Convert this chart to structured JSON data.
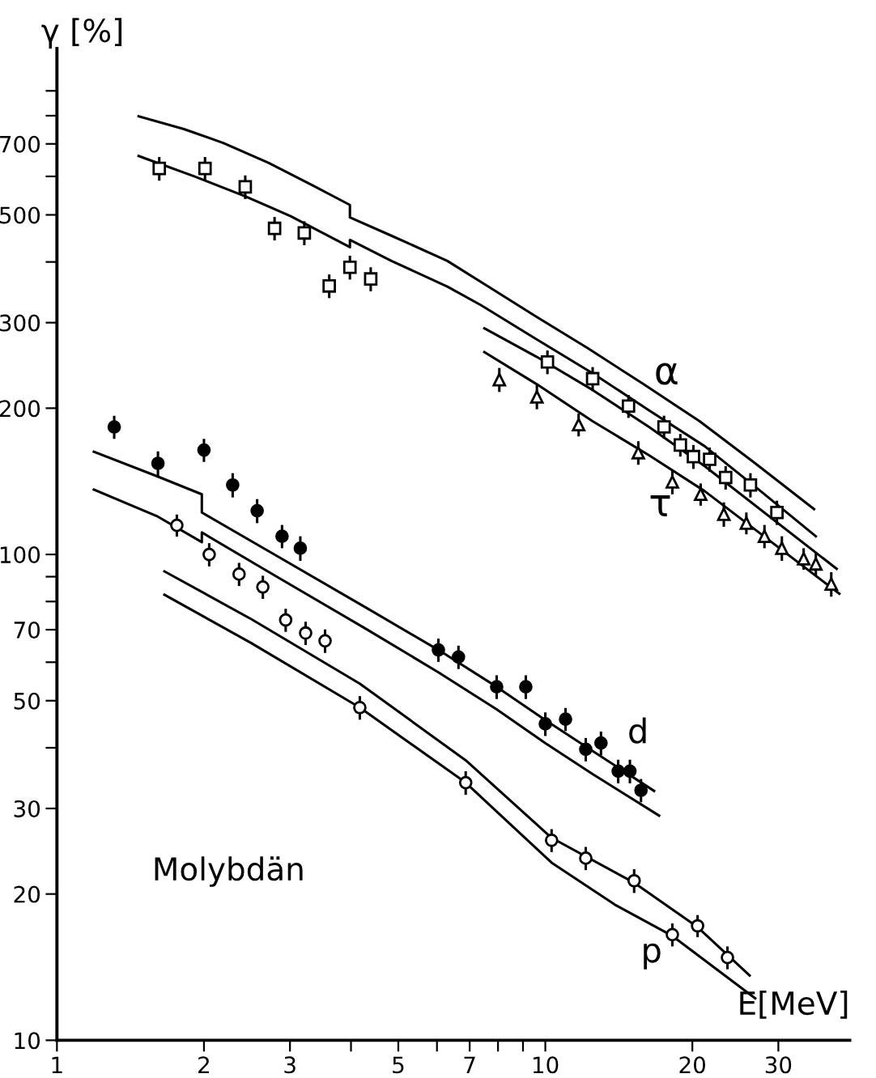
{
  "chart_data": {
    "type": "scatter",
    "xlabel": "E[MeV]",
    "ylabel": "γ [%]",
    "log": "xy",
    "grid": false,
    "legend": false,
    "xlim": [
      1,
      42
    ],
    "ylim": [
      10,
      1100
    ],
    "xticks": [
      1,
      2,
      3,
      {
        "value": 4,
        "label": null
      },
      5,
      {
        "value": 6,
        "label": null
      },
      7,
      {
        "value": 8,
        "label": null
      },
      {
        "value": 9,
        "label": null
      },
      10,
      20,
      30
    ],
    "yticks": [
      10,
      20,
      30,
      {
        "value": 40,
        "label": null
      },
      50,
      {
        "value": 60,
        "label": null
      },
      70,
      {
        "value": 80,
        "label": null
      },
      {
        "value": 90,
        "label": null
      },
      100,
      200,
      300,
      {
        "value": 400,
        "label": null
      },
      500,
      {
        "value": 600,
        "label": null
      },
      700,
      {
        "value": 800,
        "label": null
      },
      {
        "value": 900,
        "label": null
      }
    ],
    "annotations": [
      "α",
      "τ",
      "d",
      "p",
      "Molybdän"
    ],
    "series": [
      {
        "color": "#000000",
        "marker": "square",
        "x": [
          1.62,
          2.01,
          2.43,
          2.79,
          3.21,
          3.61,
          3.98,
          4.39,
          10.1,
          12.5,
          14.8,
          17.5,
          18.9,
          20.1,
          21.7,
          23.4,
          26.3,
          29.8
        ],
        "values": [
          623,
          623,
          571,
          469,
          459,
          357,
          390,
          369,
          249,
          230,
          202,
          183,
          168,
          159,
          157,
          144,
          139,
          122
        ],
        "errors": [
          35,
          35,
          32,
          26,
          26,
          20,
          22,
          21,
          14,
          13,
          11,
          10,
          9,
          9,
          9,
          8,
          8,
          7
        ]
      },
      {
        "color": "#000000",
        "marker": "triangle",
        "x": [
          8.05,
          9.61,
          11.7,
          15.5,
          18.2,
          20.8,
          23.2,
          25.8,
          28.1,
          30.5,
          33.8,
          35.8,
          38.5
        ],
        "values": [
          229,
          211,
          185,
          162,
          141,
          133,
          121,
          116,
          109,
          103,
          98,
          95.6,
          86.9
        ],
        "errors": [
          13,
          12,
          10,
          9,
          8,
          7,
          7,
          6,
          6,
          6,
          5,
          5,
          5
        ]
      },
      {
        "color": "#000000",
        "marker": "circle",
        "x": [
          1.31,
          1.61,
          2.0,
          2.29,
          2.57,
          2.89,
          3.15,
          6.04,
          6.64,
          7.95,
          9.12,
          10.0,
          11.0,
          12.1,
          13.0,
          14.1,
          14.9,
          15.7
        ],
        "values": [
          183,
          154,
          164,
          139,
          123,
          109,
          103,
          63.6,
          61.5,
          53.4,
          53.4,
          44.8,
          45.8,
          39.7,
          40.9,
          35.8,
          35.8,
          32.7
        ],
        "errors": [
          10,
          9,
          9,
          8,
          7,
          6,
          6,
          3.5,
          3.4,
          3,
          3,
          2.5,
          2.5,
          2.2,
          2.3,
          2,
          2,
          1.8
        ]
      },
      {
        "color": "#000000",
        "marker": "circle",
        "x": [
          1.76,
          2.05,
          2.36,
          2.64,
          2.94,
          3.23,
          3.54,
          4.17,
          6.87,
          10.3,
          12.1,
          15.2,
          18.2,
          20.5,
          23.6
        ],
        "values": [
          114.8,
          100,
          91.1,
          85.7,
          73.3,
          68.9,
          66.4,
          48.4,
          33.9,
          25.8,
          23.7,
          21.3,
          16.5,
          17.2,
          14.8
        ],
        "errors": [
          6,
          5.5,
          5,
          4.7,
          4,
          3.8,
          3.7,
          2.7,
          1.9,
          1.4,
          1.3,
          1.2,
          0.9,
          0.9,
          0.8
        ]
      },
      {
        "type": "line",
        "color": "#000000",
        "marker": "none",
        "x": [
          1.47,
          1.82,
          2.19,
          2.71,
          3.34,
          3.98,
          3.98,
          4.84,
          6.3,
          7.78,
          9.61,
          12.2,
          15.9,
          20.7,
          26.9,
          35.5
        ],
        "values": [
          798,
          751,
          703,
          640,
          575,
          524,
          494,
          453,
          402,
          352,
          308,
          266,
          224,
          188,
          154,
          124
        ]
      },
      {
        "type": "line",
        "color": "#000000",
        "marker": "none",
        "x": [
          1.47,
          1.92,
          2.43,
          3.01,
          3.98,
          3.98,
          4.84,
          6.3,
          7.38,
          9.61,
          12.5,
          16.3,
          21.2,
          27.6,
          35.8
        ],
        "values": [
          661,
          599,
          546,
          497,
          429,
          444,
          402,
          356,
          326,
          277,
          236,
          198,
          167,
          135,
          109
        ]
      },
      {
        "type": "line",
        "color": "#000000",
        "marker": "none",
        "x": [
          7.5,
          9.61,
          12.5,
          16.3,
          21.2,
          39.5
        ],
        "values": [
          292,
          255,
          218,
          183,
          152,
          93.4
        ]
      },
      {
        "type": "line",
        "color": "#000000",
        "marker": "none",
        "x": [
          7.5,
          9.61,
          12.5,
          16.3,
          21.2,
          40.0
        ],
        "values": [
          261,
          224,
          188,
          160,
          135,
          83.0
        ]
      },
      {
        "type": "line",
        "color": "#000000",
        "marker": "none",
        "x": [
          1.19,
          1.6,
          1.98,
          1.98,
          2.85,
          4.24,
          6.04,
          7.95,
          10.0,
          12.5,
          16.7
        ],
        "values": [
          162.7,
          145,
          133,
          122,
          98.7,
          78.3,
          63.6,
          53.4,
          45.6,
          39.4,
          32.6
        ]
      },
      {
        "type": "line",
        "color": "#000000",
        "marker": "none",
        "x": [
          1.19,
          1.6,
          1.98,
          1.98,
          2.85,
          4.24,
          6.04,
          7.95,
          10.0,
          12.5,
          17.1
        ],
        "values": [
          136,
          120,
          106,
          111,
          89.4,
          70.8,
          57.2,
          48.0,
          40.9,
          35.3,
          29.0
        ]
      },
      {
        "type": "line",
        "color": "#000000",
        "marker": "none",
        "x": [
          1.66,
          2.5,
          4.17,
          6.87,
          10.3,
          15.2,
          20.5,
          26.2
        ],
        "values": [
          92.3,
          73.6,
          54.2,
          37.7,
          26.1,
          21.1,
          17.1,
          13.6
        ]
      },
      {
        "type": "line",
        "color": "#000000",
        "marker": "none",
        "x": [
          1.66,
          2.5,
          4.17,
          6.87,
          10.3,
          13.9,
          18.2,
          26.9
        ],
        "values": [
          82.6,
          65.7,
          48.4,
          33.9,
          23.2,
          19.0,
          16.4,
          12.2
        ]
      }
    ]
  }
}
